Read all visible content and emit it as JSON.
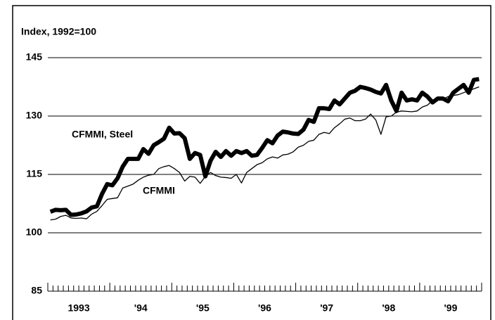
{
  "chart_data": {
    "type": "line",
    "y_label": "Index, 1992=100",
    "categories": [
      null,
      null,
      null,
      null,
      null,
      "1993",
      null,
      null,
      null,
      null,
      null,
      null,
      null,
      null,
      null,
      null,
      null,
      "'94",
      null,
      null,
      null,
      null,
      null,
      null,
      null,
      null,
      null,
      null,
      null,
      "'95",
      null,
      null,
      null,
      null,
      null,
      null,
      null,
      null,
      null,
      null,
      null,
      "'96",
      null,
      null,
      null,
      null,
      null,
      null,
      null,
      null,
      null,
      null,
      null,
      "'97",
      null,
      null,
      null,
      null,
      null,
      null,
      null,
      null,
      null,
      null,
      null,
      "'98",
      null,
      null,
      null,
      null,
      null,
      null,
      null,
      null,
      null,
      null,
      null,
      "'99",
      null,
      null,
      null,
      null,
      null,
      null
    ],
    "series": [
      {
        "name": "CFMMI, Steel",
        "color": "#000000",
        "values": [
          105.4,
          105.9,
          105.8,
          105.9,
          104.6,
          104.7,
          105,
          105.5,
          106.5,
          106.8,
          110,
          112.5,
          112.2,
          114,
          117,
          119,
          119,
          119,
          121.5,
          120.3,
          122.5,
          123.3,
          124.2,
          127,
          125.5,
          125.6,
          124.3,
          119,
          120.5,
          120,
          114.5,
          118.5,
          120.8,
          119.5,
          121,
          119.8,
          121,
          120.5,
          121,
          119.8,
          120,
          121.8,
          123.8,
          123,
          125,
          126,
          125.8,
          125.5,
          125.4,
          126.5,
          129,
          128.5,
          132,
          132,
          131.8,
          134,
          133,
          134.5,
          136,
          136.5,
          137.5,
          137.2,
          136.8,
          136.2,
          135.8,
          138,
          134,
          131.3,
          136,
          134,
          134.3,
          134,
          136,
          135,
          133.5,
          134.5,
          134.5,
          133.8,
          136,
          137,
          138,
          136,
          139.3,
          139.5
        ]
      },
      {
        "name": "CFMMI",
        "color": "#000000",
        "values": [
          103.3,
          103.5,
          104.2,
          104.5,
          103.8,
          103.7,
          103.8,
          103.6,
          104.8,
          105.5,
          107,
          108.6,
          108.8,
          109,
          111.5,
          112,
          112.5,
          113.5,
          114.3,
          114.8,
          115,
          116.5,
          117,
          117.3,
          116.5,
          115.5,
          113.3,
          114.5,
          114.3,
          112.7,
          114.5,
          115.5,
          114.7,
          114.3,
          114.2,
          114,
          115,
          112.8,
          115.5,
          116.5,
          117.5,
          118,
          119,
          119.5,
          119.2,
          120,
          120.2,
          120.8,
          122,
          122.5,
          123.5,
          123.8,
          125.3,
          125.8,
          125.5,
          127,
          128,
          129.2,
          129.5,
          128.8,
          128.8,
          129.2,
          130.5,
          129,
          125.3,
          129.8,
          130,
          131,
          131.3,
          131.2,
          131.1,
          131.3,
          132.3,
          132.8,
          134,
          134.3,
          134.3,
          135,
          135.3,
          135.5,
          136,
          136.5,
          137,
          137.5
        ]
      }
    ],
    "ylim": [
      85,
      145
    ],
    "yticks": [
      85,
      100,
      115,
      130,
      145
    ],
    "grid": true
  }
}
